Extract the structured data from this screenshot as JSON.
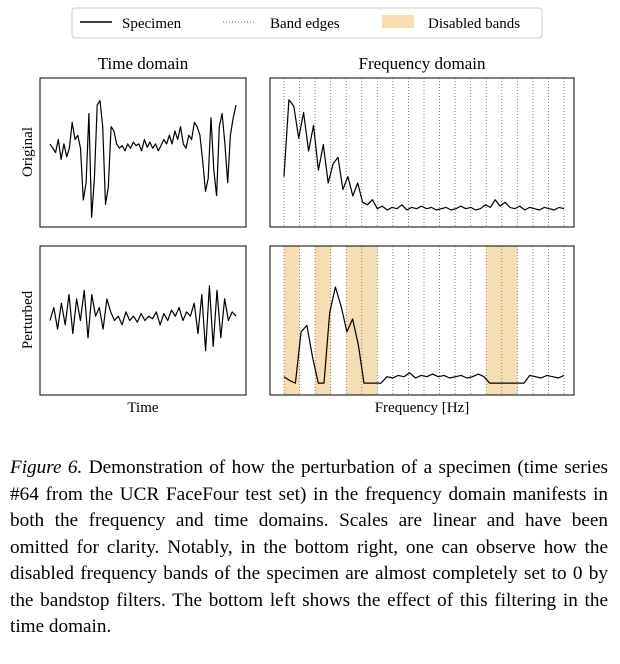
{
  "legend": {
    "items": [
      {
        "label": "Specimen",
        "style": "solid"
      },
      {
        "label": "Band edges",
        "style": "dotted"
      },
      {
        "label": "Disabled bands",
        "style": "band"
      }
    ]
  },
  "colors": {
    "band": "#f5deb3",
    "line": "#000000",
    "band_edge": "#666666"
  },
  "chart_data": [
    {
      "type": "line",
      "title": "Time domain",
      "row_label": "Original",
      "xlabel": "",
      "axes_shown": false,
      "shape": [
        0.1,
        0.05,
        0.0,
        0.15,
        -0.08,
        0.1,
        -0.05,
        0.05,
        0.35,
        0.15,
        0.2,
        0.05,
        -0.55,
        -0.35,
        0.45,
        -0.75,
        -0.3,
        0.55,
        0.6,
        0.3,
        -0.6,
        -0.4,
        0.3,
        0.25,
        0.1,
        0.05,
        0.08,
        0.02,
        0.1,
        0.05,
        0.12,
        0.08,
        0.1,
        0.02,
        0.15,
        0.06,
        0.12,
        0.05,
        0.1,
        0.02,
        0.08,
        0.15,
        0.1,
        0.2,
        0.1,
        0.25,
        0.15,
        0.3,
        0.1,
        0.05,
        0.2,
        0.15,
        0.35,
        0.3,
        0.2,
        -0.1,
        -0.45,
        -0.3,
        0.4,
        -0.2,
        -0.5,
        0.3,
        0.45,
        0.1,
        -0.35,
        0.2,
        0.4,
        0.55
      ]
    },
    {
      "type": "line",
      "title": "Frequency domain",
      "row_label": "Original",
      "xlabel": "",
      "axes_shown": false,
      "band_edge_count": 19,
      "shape": [
        0.3,
        0.9,
        0.85,
        0.6,
        0.8,
        0.5,
        0.7,
        0.35,
        0.55,
        0.25,
        0.4,
        0.45,
        0.2,
        0.3,
        0.15,
        0.25,
        0.1,
        0.08,
        0.12,
        0.05,
        0.07,
        0.04,
        0.06,
        0.05,
        0.08,
        0.04,
        0.06,
        0.05,
        0.07,
        0.05,
        0.06,
        0.04,
        0.05,
        0.06,
        0.04,
        0.05,
        0.07,
        0.05,
        0.06,
        0.04,
        0.05,
        0.08,
        0.06,
        0.12,
        0.07,
        0.1,
        0.06,
        0.05,
        0.07,
        0.04,
        0.06,
        0.05,
        0.04,
        0.06,
        0.05,
        0.04,
        0.06,
        0.05
      ]
    },
    {
      "type": "line",
      "title": "",
      "row_label": "Perturbed",
      "xlabel": "Time",
      "axes_shown": false,
      "shape": [
        0.0,
        0.15,
        -0.1,
        0.2,
        -0.05,
        0.3,
        -0.15,
        0.25,
        0.0,
        0.35,
        -0.2,
        0.3,
        0.05,
        0.15,
        -0.1,
        0.25,
        0.1,
        0.0,
        0.05,
        -0.05,
        0.1,
        0.0,
        0.05,
        -0.02,
        0.08,
        0.0,
        0.05,
        0.02,
        0.1,
        -0.05,
        0.08,
        0.0,
        0.12,
        0.05,
        0.15,
        0.0,
        0.1,
        0.05,
        0.2,
        -0.15,
        0.3,
        -0.35,
        0.4,
        -0.3,
        0.35,
        -0.2,
        0.25,
        0.0,
        0.1,
        0.05
      ]
    },
    {
      "type": "line",
      "title": "",
      "row_label": "Perturbed",
      "xlabel": "Frequency [Hz]",
      "axes_shown": false,
      "band_edge_count": 19,
      "disabled_bands_edge_index": [
        [
          0,
          1
        ],
        [
          2,
          3
        ],
        [
          4,
          6
        ],
        [
          13,
          15
        ]
      ],
      "shape": [
        0.05,
        0.02,
        0.0,
        0.4,
        0.45,
        0.2,
        0.0,
        0.0,
        0.55,
        0.75,
        0.6,
        0.4,
        0.5,
        0.3,
        0.0,
        0.0,
        0.0,
        0.0,
        0.05,
        0.04,
        0.06,
        0.05,
        0.08,
        0.04,
        0.06,
        0.05,
        0.07,
        0.05,
        0.06,
        0.04,
        0.05,
        0.06,
        0.04,
        0.05,
        0.07,
        0.05,
        0.0,
        0.0,
        0.0,
        0.0,
        0.0,
        0.0,
        0.0,
        0.06,
        0.05,
        0.04,
        0.06,
        0.05,
        0.04,
        0.06
      ]
    }
  ],
  "caption": {
    "label": "Figure 6.",
    "text": " Demonstration of how the perturbation of a specimen (time series #64 from the UCR FaceFour test set) in the frequency domain manifests in both the frequency and time domains. Scales are linear and have been omitted for clarity. Notably, in the bottom right, one can observe how the disabled frequency bands of the specimen are almost completely set to 0 by the bandstop filters. The bottom left shows the effect of this filtering in the time domain."
  }
}
